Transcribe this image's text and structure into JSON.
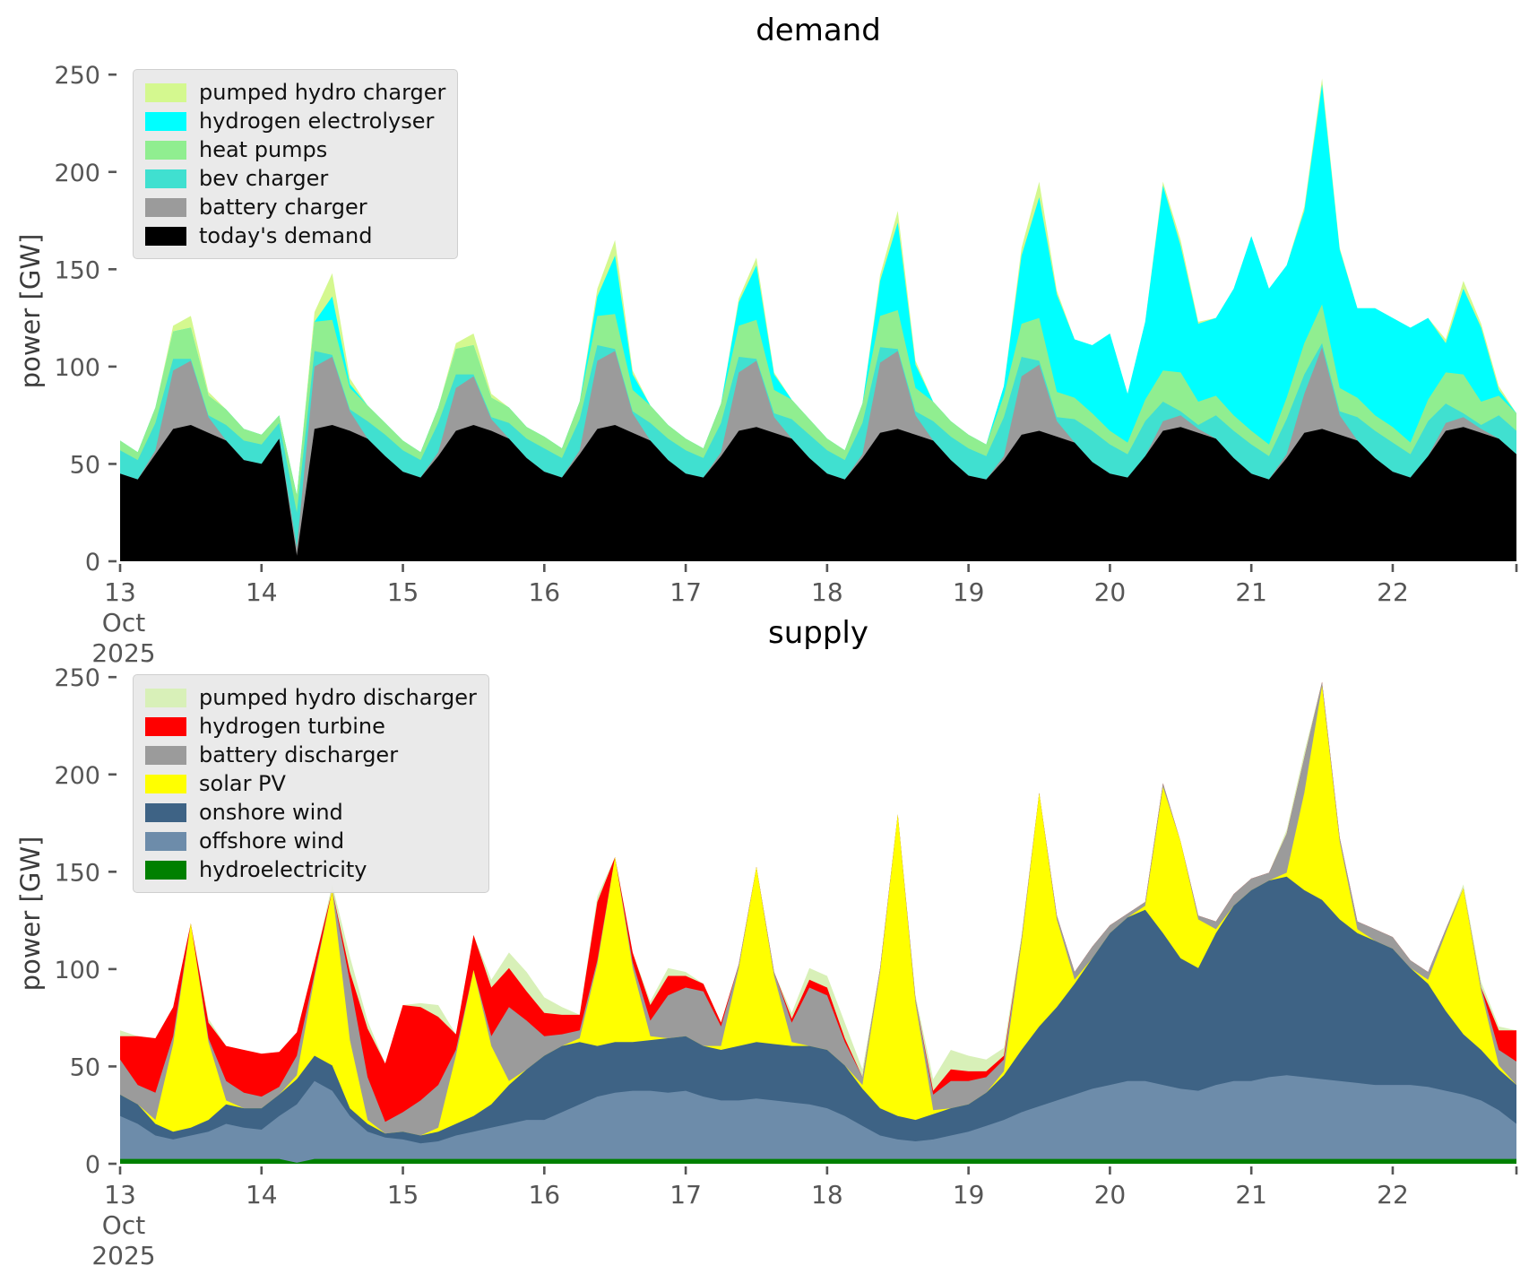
{
  "figure": {
    "background": "#ffffff"
  },
  "axis": {
    "tick_color": "#565656",
    "title_color": "#000000"
  },
  "chart_data": [
    {
      "type": "area",
      "stacked": true,
      "title": "demand",
      "ylabel": "power [GW]",
      "ylim": [
        0,
        257
      ],
      "yticks": [
        0,
        50,
        100,
        150,
        200,
        250
      ],
      "xlim": [
        13,
        22.875
      ],
      "x_start": 13,
      "x_step": 0.125,
      "xticks": [
        13,
        14,
        15,
        16,
        17,
        18,
        19,
        20,
        21,
        22
      ],
      "xtick_sub": [
        "Oct",
        "2025"
      ],
      "axis_color": "#565656",
      "grid": false,
      "legend_position": "upper-left",
      "series": [
        {
          "name": "today's demand",
          "color": "#000000",
          "values": [
            45,
            42,
            55,
            68,
            70,
            66,
            62,
            52,
            50,
            63,
            3,
            68,
            70,
            67,
            63,
            54,
            46,
            43,
            54,
            67,
            70,
            67,
            63,
            53,
            46,
            43,
            55,
            68,
            70,
            66,
            62,
            52,
            45,
            43,
            54,
            67,
            69,
            66,
            63,
            53,
            45,
            42,
            53,
            66,
            68,
            65,
            62,
            52,
            44,
            42,
            52,
            65,
            67,
            64,
            61,
            51,
            45,
            43,
            54,
            67,
            69,
            66,
            63,
            53,
            45,
            42,
            53,
            66,
            68,
            65,
            62,
            53,
            46,
            43,
            54,
            67,
            69,
            66,
            63,
            55
          ]
        },
        {
          "name": "battery charger",
          "color": "#9b9b9b",
          "values": [
            0,
            0,
            2,
            30,
            33,
            8,
            0,
            0,
            0,
            0,
            4,
            32,
            35,
            10,
            0,
            0,
            0,
            0,
            2,
            22,
            25,
            6,
            0,
            0,
            0,
            0,
            2,
            35,
            38,
            10,
            0,
            0,
            0,
            0,
            2,
            30,
            34,
            8,
            0,
            0,
            0,
            0,
            2,
            36,
            40,
            10,
            0,
            0,
            0,
            0,
            2,
            30,
            34,
            8,
            0,
            0,
            0,
            0,
            0,
            5,
            6,
            2,
            0,
            0,
            0,
            0,
            2,
            20,
            42,
            10,
            0,
            0,
            0,
            0,
            0,
            4,
            5,
            2,
            0,
            0
          ]
        },
        {
          "name": "bev charger",
          "color": "#40e0d0",
          "values": [
            12,
            10,
            14,
            6,
            1,
            1,
            8,
            10,
            10,
            8,
            18,
            8,
            1,
            1,
            9,
            11,
            11,
            9,
            15,
            7,
            1,
            1,
            8,
            10,
            12,
            10,
            16,
            8,
            1,
            1,
            9,
            11,
            12,
            10,
            15,
            8,
            1,
            2,
            10,
            12,
            12,
            10,
            16,
            8,
            1,
            2,
            10,
            12,
            14,
            12,
            20,
            10,
            2,
            2,
            12,
            16,
            15,
            12,
            18,
            10,
            2,
            2,
            12,
            14,
            15,
            12,
            18,
            10,
            2,
            2,
            12,
            14,
            15,
            12,
            18,
            10,
            2,
            2,
            12,
            12
          ]
        },
        {
          "name": "heat pumps",
          "color": "#90ee90",
          "values": [
            5,
            4,
            8,
            14,
            16,
            10,
            8,
            6,
            5,
            4,
            9,
            15,
            18,
            11,
            8,
            6,
            5,
            4,
            8,
            13,
            15,
            10,
            8,
            6,
            6,
            5,
            9,
            15,
            18,
            11,
            9,
            7,
            6,
            5,
            10,
            16,
            20,
            12,
            10,
            8,
            6,
            5,
            10,
            16,
            20,
            12,
            10,
            8,
            7,
            6,
            11,
            17,
            22,
            13,
            11,
            9,
            7,
            6,
            11,
            16,
            20,
            12,
            10,
            8,
            7,
            6,
            11,
            16,
            20,
            12,
            10,
            8,
            8,
            6,
            11,
            16,
            20,
            12,
            10,
            9
          ]
        },
        {
          "name": "hydrogen electrolyser",
          "color": "#00ffff",
          "values": [
            0,
            0,
            0,
            0,
            0,
            0,
            0,
            0,
            0,
            0,
            0,
            0,
            12,
            2,
            0,
            0,
            0,
            0,
            0,
            0,
            0,
            0,
            0,
            0,
            0,
            0,
            0,
            10,
            30,
            8,
            0,
            0,
            0,
            0,
            0,
            12,
            28,
            8,
            0,
            0,
            0,
            0,
            0,
            18,
            45,
            12,
            0,
            0,
            0,
            0,
            5,
            35,
            62,
            50,
            30,
            35,
            50,
            25,
            40,
            95,
            65,
            40,
            40,
            65,
            100,
            80,
            68,
            68,
            113,
            71,
            46,
            55,
            56,
            59,
            42,
            15,
            44,
            38,
            3,
            0
          ]
        },
        {
          "name": "pumped hydro charger",
          "color": "#d4f88f",
          "values": [
            0,
            0,
            0,
            3,
            6,
            2,
            0,
            0,
            0,
            0,
            0,
            5,
            12,
            3,
            0,
            0,
            0,
            0,
            0,
            3,
            6,
            2,
            0,
            0,
            0,
            0,
            0,
            4,
            8,
            2,
            0,
            0,
            0,
            0,
            0,
            2,
            4,
            1,
            0,
            0,
            0,
            0,
            0,
            3,
            6,
            2,
            0,
            0,
            0,
            0,
            0,
            4,
            8,
            2,
            0,
            0,
            0,
            0,
            0,
            2,
            3,
            1,
            0,
            0,
            0,
            0,
            0,
            2,
            3,
            1,
            0,
            0,
            0,
            0,
            0,
            2,
            4,
            2,
            2,
            0
          ]
        }
      ]
    },
    {
      "type": "area",
      "stacked": true,
      "title": "supply",
      "ylabel": "power [GW]",
      "ylim": [
        0,
        257
      ],
      "yticks": [
        0,
        50,
        100,
        150,
        200,
        250
      ],
      "xlim": [
        13,
        22.875
      ],
      "x_start": 13,
      "x_step": 0.125,
      "xticks": [
        13,
        14,
        15,
        16,
        17,
        18,
        19,
        20,
        21,
        22
      ],
      "xtick_sub": [
        "Oct",
        "2025"
      ],
      "axis_color": "#565656",
      "grid": false,
      "legend_position": "upper-left",
      "series": [
        {
          "name": "hydroelectricity",
          "color": "#008000",
          "values": [
            2.5,
            2.5,
            2.5,
            2.5,
            2.5,
            2.5,
            2.5,
            2.5,
            2.5,
            2.5,
            0.5,
            2.5,
            2.5,
            2.5,
            2.5,
            2.5,
            2.5,
            2.5,
            2.5,
            2.5,
            2.5,
            2.5,
            2.5,
            2.5,
            2.5,
            2.5,
            2.5,
            2.5,
            2.5,
            2.5,
            2.5,
            2.5,
            2.5,
            2.5,
            2.5,
            2.5,
            2.5,
            2.5,
            2.5,
            2.5,
            2.5,
            2.5,
            2.5,
            2.5,
            2.5,
            2.5,
            2.5,
            2.5,
            2.5,
            2.5,
            2.5,
            2.5,
            2.5,
            2.5,
            2.5,
            2.5,
            2.5,
            2.5,
            2.5,
            2.5,
            2.5,
            2.5,
            2.5,
            2.5,
            2.5,
            2.5,
            2.5,
            2.5,
            2.5,
            2.5,
            2.5,
            2.5,
            2.5,
            2.5,
            2.5,
            2.5,
            2.5,
            2.5,
            2.5,
            2.5
          ]
        },
        {
          "name": "offshore wind",
          "color": "#6d8caa",
          "values": [
            22,
            18,
            12,
            10,
            12,
            14,
            18,
            16,
            15,
            22,
            30,
            40,
            35,
            22,
            14,
            11,
            10,
            8,
            9,
            12,
            14,
            16,
            18,
            20,
            20,
            24,
            28,
            32,
            34,
            35,
            35,
            34,
            35,
            32,
            30,
            30,
            31,
            30,
            29,
            28,
            26,
            22,
            17,
            12,
            10,
            9,
            10,
            12,
            14,
            17,
            20,
            24,
            27,
            30,
            33,
            36,
            38,
            40,
            40,
            38,
            36,
            35,
            38,
            40,
            40,
            42,
            43,
            42,
            41,
            40,
            39,
            38,
            38,
            38,
            37,
            35,
            33,
            30,
            25,
            18
          ]
        },
        {
          "name": "onshore wind",
          "color": "#3e6385",
          "values": [
            11,
            10,
            6,
            4,
            4,
            6,
            10,
            10,
            11,
            11,
            13,
            13,
            13,
            4,
            4,
            2,
            4,
            4,
            5,
            6,
            8,
            12,
            20,
            26,
            33,
            34,
            32,
            26,
            26,
            25,
            26,
            28,
            28,
            26,
            26,
            28,
            29,
            29,
            29,
            30,
            30,
            26,
            19,
            14,
            12,
            11,
            13,
            14,
            14,
            17,
            23,
            32,
            41,
            48,
            57,
            67,
            78,
            84,
            88,
            78,
            67,
            63,
            78,
            90,
            98,
            101,
            102,
            96,
            92,
            83,
            77,
            74,
            70,
            60,
            53,
            41,
            31,
            26,
            21,
            20
          ]
        },
        {
          "name": "solar PV",
          "color": "#ffff00",
          "values": [
            0,
            0,
            2,
            45,
            105,
            40,
            2,
            0,
            0,
            0,
            2,
            40,
            90,
            35,
            2,
            0,
            0,
            0,
            2,
            35,
            75,
            30,
            2,
            0,
            0,
            0,
            2,
            42,
            95,
            38,
            2,
            0,
            0,
            0,
            2,
            40,
            90,
            35,
            2,
            0,
            0,
            0,
            2,
            70,
            155,
            60,
            2,
            0,
            0,
            0,
            2,
            55,
            120,
            45,
            2,
            0,
            0,
            0,
            2,
            75,
            60,
            25,
            2,
            0,
            0,
            0,
            2,
            50,
            110,
            40,
            2,
            0,
            0,
            0,
            2,
            40,
            75,
            30,
            2,
            0
          ]
        },
        {
          "name": "battery discharger",
          "color": "#9b9b9b",
          "values": [
            18,
            10,
            14,
            4,
            0,
            2,
            10,
            8,
            6,
            4,
            10,
            2,
            0,
            30,
            22,
            6,
            10,
            18,
            22,
            3,
            0,
            5,
            38,
            25,
            10,
            6,
            4,
            2,
            0,
            3,
            8,
            22,
            25,
            28,
            10,
            2,
            0,
            2,
            10,
            30,
            28,
            12,
            4,
            2,
            0,
            2,
            8,
            14,
            12,
            8,
            6,
            2,
            0,
            2,
            4,
            6,
            4,
            2,
            2,
            2,
            0,
            2,
            4,
            6,
            6,
            4,
            20,
            18,
            2,
            2,
            4,
            6,
            6,
            4,
            4,
            2,
            0,
            2,
            8,
            12
          ]
        },
        {
          "name": "hydrogen turbine",
          "color": "#ff0000",
          "values": [
            12,
            25,
            28,
            15,
            0,
            8,
            18,
            22,
            22,
            18,
            12,
            6,
            0,
            5,
            25,
            30,
            55,
            48,
            35,
            8,
            18,
            25,
            20,
            15,
            12,
            10,
            8,
            30,
            0,
            5,
            8,
            10,
            6,
            4,
            2,
            0,
            0,
            0,
            2,
            4,
            4,
            2,
            0,
            0,
            0,
            0,
            2,
            6,
            5,
            3,
            2,
            0,
            0,
            0,
            0,
            0,
            0,
            0,
            0,
            0,
            0,
            0,
            0,
            0,
            0,
            0,
            0,
            0,
            0,
            0,
            0,
            0,
            0,
            0,
            0,
            0,
            0,
            0,
            10,
            16
          ]
        },
        {
          "name": "pumped hydro discharger",
          "color": "#d8f0b8",
          "values": [
            3,
            0,
            0,
            0,
            0,
            2,
            0,
            0,
            0,
            0,
            0,
            0,
            3,
            8,
            4,
            0,
            0,
            2,
            6,
            0,
            0,
            4,
            8,
            10,
            8,
            4,
            0,
            3,
            0,
            0,
            2,
            4,
            2,
            0,
            0,
            0,
            0,
            0,
            3,
            6,
            6,
            8,
            4,
            0,
            0,
            2,
            6,
            10,
            8,
            6,
            4,
            2,
            0,
            0,
            0,
            0,
            0,
            0,
            0,
            0,
            0,
            0,
            0,
            0,
            0,
            0,
            2,
            3,
            0,
            0,
            0,
            0,
            0,
            0,
            0,
            0,
            2,
            3,
            2,
            0
          ]
        }
      ]
    }
  ]
}
